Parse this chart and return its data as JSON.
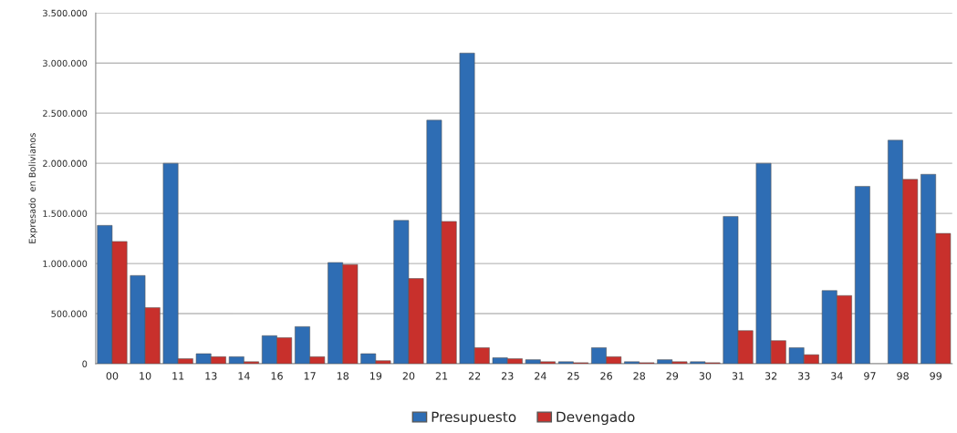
{
  "chart_data": {
    "type": "bar",
    "ylabel": "Expresado  en Bolivianos",
    "categories": [
      "00",
      "10",
      "11",
      "13",
      "14",
      "16",
      "17",
      "18",
      "19",
      "20",
      "21",
      "22",
      "23",
      "24",
      "25",
      "26",
      "28",
      "29",
      "30",
      "31",
      "32",
      "33",
      "34",
      "97",
      "98",
      "99"
    ],
    "series": [
      {
        "name": "Presupuesto",
        "color": "#2e6db4",
        "values": [
          1380000,
          880000,
          2000000,
          100000,
          70000,
          280000,
          370000,
          1010000,
          100000,
          1430000,
          2430000,
          3100000,
          60000,
          40000,
          20000,
          160000,
          20000,
          40000,
          20000,
          1470000,
          2000000,
          160000,
          730000,
          1770000,
          2230000,
          1890000
        ]
      },
      {
        "name": "Devengado",
        "color": "#c8302c",
        "values": [
          1220000,
          560000,
          50000,
          70000,
          20000,
          260000,
          70000,
          990000,
          30000,
          850000,
          1420000,
          160000,
          50000,
          20000,
          10000,
          70000,
          10000,
          20000,
          10000,
          330000,
          230000,
          90000,
          680000,
          null,
          1840000,
          1300000
        ]
      }
    ],
    "ylim": [
      0,
      3500000
    ],
    "yticks": [
      0,
      {
        "value": 500000,
        "label": "500.000"
      },
      {
        "value": 1000000,
        "label": "1.000.000"
      },
      {
        "value": 1500000,
        "label": "1.500.000"
      },
      {
        "value": 2000000,
        "label": "2.000.000"
      },
      {
        "value": 2500000,
        "label": "2.500.000"
      },
      {
        "value": 3000000,
        "label": "3.000.000"
      },
      {
        "value": 3500000,
        "label": "3.500.000"
      }
    ],
    "grid": "y",
    "legend": "bottom"
  }
}
